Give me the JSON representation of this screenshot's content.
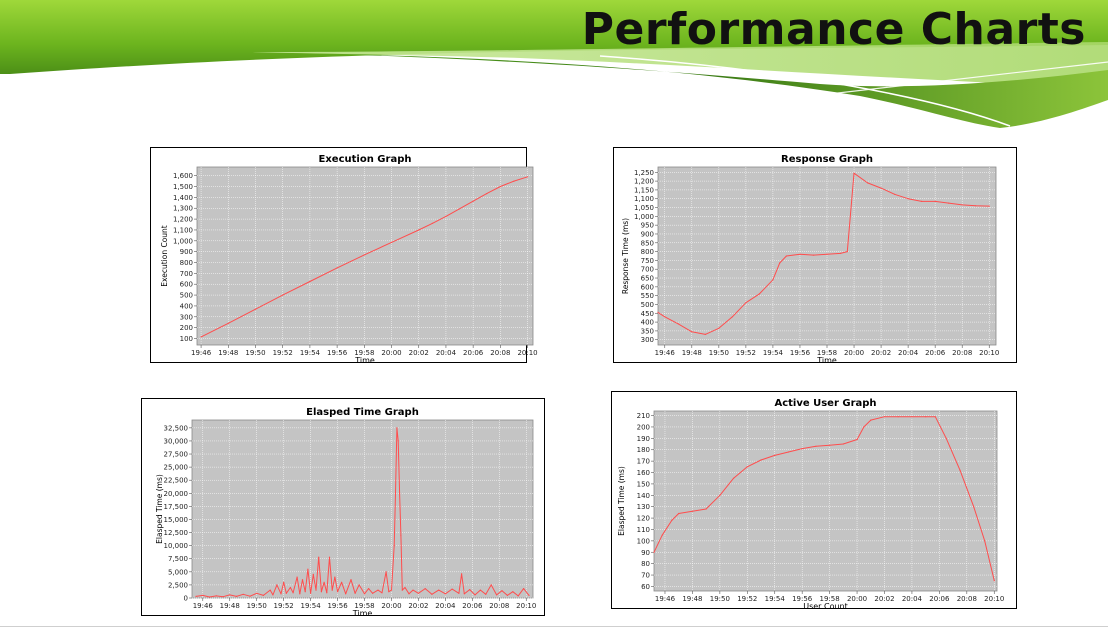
{
  "page": {
    "title": "Performance Charts",
    "accent_color": "#7cc520",
    "dark_green": "#3f7d1e"
  },
  "chart_data": [
    {
      "type": "line",
      "title": "Execution Graph",
      "xlabel": "Time",
      "ylabel": "Execution Count",
      "x_ticks": [
        "19:46",
        "19:48",
        "19:50",
        "19:52",
        "19:54",
        "19:56",
        "19:58",
        "20:00",
        "20:02",
        "20:04",
        "20:06",
        "20:08",
        "20:10"
      ],
      "y_ticks": [
        "100",
        "200",
        "300",
        "400",
        "500",
        "600",
        "700",
        "800",
        "900",
        "1,000",
        "1,100",
        "1,200",
        "1,300",
        "1,400",
        "1,500",
        "1,600"
      ],
      "xlim": [
        -0.3,
        24.4
      ],
      "ylim": [
        40,
        1680
      ],
      "x_unit": "minutes after 19:46",
      "series": [
        {
          "color": "#ff4d4d",
          "points": [
            [
              0,
              115
            ],
            [
              2,
              240
            ],
            [
              4,
              370
            ],
            [
              6,
              500
            ],
            [
              8,
              625
            ],
            [
              10,
              750
            ],
            [
              12,
              870
            ],
            [
              14,
              985
            ],
            [
              16,
              1100
            ],
            [
              17,
              1160
            ],
            [
              18,
              1225
            ],
            [
              19,
              1295
            ],
            [
              20,
              1365
            ],
            [
              21,
              1435
            ],
            [
              22,
              1500
            ],
            [
              23,
              1550
            ],
            [
              24,
              1590
            ]
          ]
        }
      ]
    },
    {
      "type": "line",
      "title": "Response Graph",
      "xlabel": "Time",
      "ylabel": "Response Time (ms)",
      "x_ticks": [
        "19:46",
        "19:48",
        "19:50",
        "19:52",
        "19:54",
        "19:56",
        "19:58",
        "20:00",
        "20:02",
        "20:04",
        "20:06",
        "20:08",
        "20:10"
      ],
      "y_ticks": [
        "300",
        "350",
        "400",
        "450",
        "500",
        "550",
        "600",
        "650",
        "700",
        "750",
        "800",
        "850",
        "900",
        "950",
        "1,000",
        "1,050",
        "1,100",
        "1,150",
        "1,200",
        "1,250"
      ],
      "xlim": [
        -0.5,
        24.5
      ],
      "ylim": [
        270,
        1280
      ],
      "x_unit": "minutes after 19:46",
      "series": [
        {
          "color": "#ff4d4d",
          "points": [
            [
              -0.5,
              455
            ],
            [
              0,
              430
            ],
            [
              1,
              390
            ],
            [
              2,
              345
            ],
            [
              3,
              330
            ],
            [
              4,
              365
            ],
            [
              5,
              430
            ],
            [
              6,
              510
            ],
            [
              7,
              560
            ],
            [
              8,
              640
            ],
            [
              8.5,
              735
            ],
            [
              9,
              775
            ],
            [
              10,
              785
            ],
            [
              11,
              780
            ],
            [
              12,
              785
            ],
            [
              13,
              790
            ],
            [
              13.5,
              800
            ],
            [
              14,
              1245
            ],
            [
              15,
              1190
            ],
            [
              16,
              1160
            ],
            [
              17,
              1125
            ],
            [
              18,
              1100
            ],
            [
              19,
              1085
            ],
            [
              20,
              1085
            ],
            [
              21,
              1075
            ],
            [
              22,
              1065
            ],
            [
              23,
              1060
            ],
            [
              24,
              1058
            ]
          ]
        }
      ]
    },
    {
      "type": "line",
      "title": "Elasped Time Graph",
      "xlabel": "Time",
      "ylabel": "Elasped Time (ms)",
      "x_ticks": [
        "19:46",
        "19:48",
        "19:50",
        "19:52",
        "19:54",
        "19:56",
        "19:58",
        "20:00",
        "20:02",
        "20:04",
        "20:06",
        "20:08",
        "20:10"
      ],
      "y_ticks": [
        "0",
        "2,500",
        "5,000",
        "7,500",
        "10,000",
        "12,500",
        "15,000",
        "17,500",
        "20,000",
        "22,500",
        "25,000",
        "27,500",
        "30,000",
        "32,500"
      ],
      "xlim": [
        -0.8,
        24.5
      ],
      "ylim": [
        0,
        34000
      ],
      "x_unit": "minutes after 19:46",
      "series": [
        {
          "color": "#ff4d4d",
          "points": [
            [
              -0.5,
              300
            ],
            [
              0,
              500
            ],
            [
              0.5,
              200
            ],
            [
              1,
              400
            ],
            [
              1.5,
              250
            ],
            [
              2,
              600
            ],
            [
              2.5,
              300
            ],
            [
              3,
              700
            ],
            [
              3.5,
              350
            ],
            [
              4,
              900
            ],
            [
              4.5,
              500
            ],
            [
              5,
              1500
            ],
            [
              5.2,
              600
            ],
            [
              5.5,
              2500
            ],
            [
              5.8,
              800
            ],
            [
              6,
              3000
            ],
            [
              6.2,
              900
            ],
            [
              6.5,
              2000
            ],
            [
              6.7,
              1000
            ],
            [
              7,
              4000
            ],
            [
              7.2,
              800
            ],
            [
              7.4,
              3500
            ],
            [
              7.6,
              1200
            ],
            [
              7.8,
              5500
            ],
            [
              8,
              900
            ],
            [
              8.2,
              4500
            ],
            [
              8.4,
              1500
            ],
            [
              8.6,
              7800
            ],
            [
              8.8,
              1200
            ],
            [
              9,
              3000
            ],
            [
              9.2,
              1000
            ],
            [
              9.4,
              7800
            ],
            [
              9.6,
              1500
            ],
            [
              9.8,
              4000
            ],
            [
              10,
              1200
            ],
            [
              10.3,
              3000
            ],
            [
              10.6,
              800
            ],
            [
              11,
              3500
            ],
            [
              11.3,
              900
            ],
            [
              11.6,
              2500
            ],
            [
              12,
              800
            ],
            [
              12.3,
              1800
            ],
            [
              12.6,
              900
            ],
            [
              13,
              1500
            ],
            [
              13.3,
              1000
            ],
            [
              13.6,
              5000
            ],
            [
              13.8,
              1200
            ],
            [
              14,
              1500
            ],
            [
              14.2,
              10000
            ],
            [
              14.3,
              20000
            ],
            [
              14.4,
              32500
            ],
            [
              14.5,
              30000
            ],
            [
              14.6,
              20000
            ],
            [
              14.7,
              12000
            ],
            [
              14.8,
              1500
            ],
            [
              15,
              2000
            ],
            [
              15.3,
              800
            ],
            [
              15.6,
              1500
            ],
            [
              16,
              900
            ],
            [
              16.5,
              1800
            ],
            [
              17,
              700
            ],
            [
              17.5,
              1500
            ],
            [
              18,
              800
            ],
            [
              18.5,
              1700
            ],
            [
              19,
              900
            ],
            [
              19.2,
              4600
            ],
            [
              19.4,
              800
            ],
            [
              19.8,
              1600
            ],
            [
              20.2,
              600
            ],
            [
              20.6,
              1500
            ],
            [
              21,
              700
            ],
            [
              21.4,
              2500
            ],
            [
              21.8,
              600
            ],
            [
              22.2,
              1400
            ],
            [
              22.6,
              500
            ],
            [
              23,
              1200
            ],
            [
              23.4,
              400
            ],
            [
              23.8,
              1800
            ],
            [
              24.2,
              500
            ]
          ]
        }
      ]
    },
    {
      "type": "line",
      "title": "Active User Graph",
      "xlabel": "User Count",
      "ylabel": "Elasped Time (ms)",
      "x_ticks": [
        "19:46",
        "19:48",
        "19:50",
        "19:52",
        "19:54",
        "19:56",
        "19:58",
        "20:00",
        "20:02",
        "20:04",
        "20:06",
        "20:08",
        "20:10"
      ],
      "y_ticks": [
        "60",
        "70",
        "80",
        "90",
        "100",
        "110",
        "120",
        "130",
        "140",
        "150",
        "160",
        "170",
        "180",
        "190",
        "200",
        "210"
      ],
      "xlim": [
        -0.8,
        24.2
      ],
      "ylim": [
        56,
        214
      ],
      "x_unit": "minutes after 19:46",
      "series": [
        {
          "color": "#ff4d4d",
          "points": [
            [
              -0.8,
              90
            ],
            [
              -0.2,
              105
            ],
            [
              0.5,
              118
            ],
            [
              1,
              124
            ],
            [
              2,
              126
            ],
            [
              3,
              128
            ],
            [
              4,
              140
            ],
            [
              5,
              155
            ],
            [
              6,
              165
            ],
            [
              7,
              171
            ],
            [
              8,
              175
            ],
            [
              9,
              178
            ],
            [
              10,
              181
            ],
            [
              11,
              183
            ],
            [
              12,
              184
            ],
            [
              13,
              185
            ],
            [
              14,
              189
            ],
            [
              14.5,
              200
            ],
            [
              15,
              206
            ],
            [
              16,
              209
            ],
            [
              17,
              209
            ],
            [
              18,
              209
            ],
            [
              19,
              209
            ],
            [
              19.7,
              209
            ],
            [
              20.5,
              190
            ],
            [
              21.5,
              162
            ],
            [
              22.5,
              130
            ],
            [
              23.3,
              100
            ],
            [
              24,
              65
            ]
          ]
        }
      ]
    }
  ]
}
